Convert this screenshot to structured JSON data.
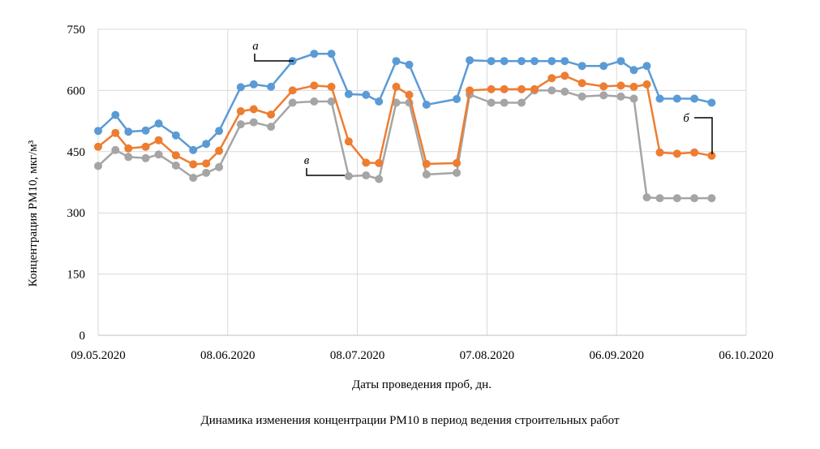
{
  "caption": "Динамика изменения концентрации PM10 в период ведения строительных работ",
  "chart_data": {
    "type": "line",
    "xlabel": "Даты проведения проб, дн.",
    "ylabel": "Концентрация PM10, мкг/м³",
    "ylim": [
      0,
      750
    ],
    "yticks": [
      0,
      150,
      300,
      450,
      600,
      750
    ],
    "xlim": [
      "2020-05-09",
      "2020-10-06"
    ],
    "xticks": [
      "09.05.2020",
      "08.06.2020",
      "08.07.2020",
      "07.08.2020",
      "06.09.2020",
      "06.10.2020"
    ],
    "grid": "vertical and horizontal",
    "legend": "none",
    "series": [
      {
        "name": "а",
        "color": "#5b9bd5",
        "points": [
          [
            "2020-05-09",
            501
          ],
          [
            "2020-05-13",
            540
          ],
          [
            "2020-05-16",
            499
          ],
          [
            "2020-05-20",
            502
          ],
          [
            "2020-05-23",
            519
          ],
          [
            "2020-05-27",
            490
          ],
          [
            "2020-05-31",
            454
          ],
          [
            "2020-06-03",
            469
          ],
          [
            "2020-06-06",
            501
          ],
          [
            "2020-06-11",
            608
          ],
          [
            "2020-06-14",
            615
          ],
          [
            "2020-06-18",
            609
          ],
          [
            "2020-06-23",
            672
          ],
          [
            "2020-06-28",
            690
          ],
          [
            "2020-07-02",
            690
          ],
          [
            "2020-07-06",
            591
          ],
          [
            "2020-07-10",
            589
          ],
          [
            "2020-07-13",
            573
          ],
          [
            "2020-07-17",
            672
          ],
          [
            "2020-07-20",
            663
          ],
          [
            "2020-07-24",
            565
          ],
          [
            "2020-07-31",
            579
          ],
          [
            "2020-08-03",
            674
          ],
          [
            "2020-08-08",
            672
          ],
          [
            "2020-08-11",
            672
          ],
          [
            "2020-08-15",
            672
          ],
          [
            "2020-08-18",
            672
          ],
          [
            "2020-08-22",
            672
          ],
          [
            "2020-08-25",
            672
          ],
          [
            "2020-08-29",
            660
          ],
          [
            "2020-09-03",
            660
          ],
          [
            "2020-09-07",
            672
          ],
          [
            "2020-09-10",
            650
          ],
          [
            "2020-09-13",
            660
          ],
          [
            "2020-09-16",
            580
          ],
          [
            "2020-09-20",
            580
          ],
          [
            "2020-09-24",
            580
          ],
          [
            "2020-09-28",
            570
          ]
        ]
      },
      {
        "name": "б",
        "color": "#ed7d31",
        "points": [
          [
            "2020-05-09",
            462
          ],
          [
            "2020-05-13",
            496
          ],
          [
            "2020-05-16",
            458
          ],
          [
            "2020-05-20",
            462
          ],
          [
            "2020-05-23",
            478
          ],
          [
            "2020-05-27",
            441
          ],
          [
            "2020-05-31",
            419
          ],
          [
            "2020-06-03",
            421
          ],
          [
            "2020-06-06",
            452
          ],
          [
            "2020-06-11",
            549
          ],
          [
            "2020-06-14",
            554
          ],
          [
            "2020-06-18",
            541
          ],
          [
            "2020-06-23",
            600
          ],
          [
            "2020-06-28",
            612
          ],
          [
            "2020-07-02",
            609
          ],
          [
            "2020-07-06",
            475
          ],
          [
            "2020-07-10",
            423
          ],
          [
            "2020-07-13",
            422
          ],
          [
            "2020-07-17",
            609
          ],
          [
            "2020-07-20",
            589
          ],
          [
            "2020-07-24",
            420
          ],
          [
            "2020-07-31",
            422
          ],
          [
            "2020-08-03",
            600
          ],
          [
            "2020-08-08",
            603
          ],
          [
            "2020-08-11",
            603
          ],
          [
            "2020-08-15",
            603
          ],
          [
            "2020-08-18",
            603
          ],
          [
            "2020-08-22",
            630
          ],
          [
            "2020-08-25",
            636
          ],
          [
            "2020-08-29",
            618
          ],
          [
            "2020-09-03",
            610
          ],
          [
            "2020-09-07",
            612
          ],
          [
            "2020-09-10",
            609
          ],
          [
            "2020-09-13",
            615
          ],
          [
            "2020-09-16",
            448
          ],
          [
            "2020-09-20",
            445
          ],
          [
            "2020-09-24",
            448
          ],
          [
            "2020-09-28",
            440
          ]
        ]
      },
      {
        "name": "в",
        "color": "#a5a5a5",
        "points": [
          [
            "2020-05-09",
            415
          ],
          [
            "2020-05-13",
            454
          ],
          [
            "2020-05-16",
            437
          ],
          [
            "2020-05-20",
            434
          ],
          [
            "2020-05-23",
            443
          ],
          [
            "2020-05-27",
            416
          ],
          [
            "2020-05-31",
            386
          ],
          [
            "2020-06-03",
            398
          ],
          [
            "2020-06-06",
            412
          ],
          [
            "2020-06-11",
            517
          ],
          [
            "2020-06-14",
            522
          ],
          [
            "2020-06-18",
            511
          ],
          [
            "2020-06-23",
            570
          ],
          [
            "2020-06-28",
            573
          ],
          [
            "2020-07-02",
            573
          ],
          [
            "2020-07-06",
            390
          ],
          [
            "2020-07-10",
            392
          ],
          [
            "2020-07-13",
            383
          ],
          [
            "2020-07-17",
            570
          ],
          [
            "2020-07-20",
            570
          ],
          [
            "2020-07-24",
            394
          ],
          [
            "2020-07-31",
            398
          ],
          [
            "2020-08-03",
            590
          ],
          [
            "2020-08-08",
            570
          ],
          [
            "2020-08-11",
            570
          ],
          [
            "2020-08-15",
            570
          ],
          [
            "2020-08-18",
            600
          ],
          [
            "2020-08-22",
            600
          ],
          [
            "2020-08-25",
            597
          ],
          [
            "2020-08-29",
            585
          ],
          [
            "2020-09-03",
            588
          ],
          [
            "2020-09-07",
            585
          ],
          [
            "2020-09-10",
            580
          ],
          [
            "2020-09-13",
            338
          ],
          [
            "2020-09-16",
            336
          ],
          [
            "2020-09-20",
            336
          ],
          [
            "2020-09-24",
            336
          ],
          [
            "2020-09-28",
            336
          ]
        ]
      }
    ]
  }
}
